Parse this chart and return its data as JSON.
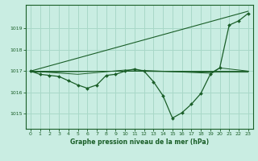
{
  "bg_color": "#c9ede2",
  "grid_color": "#a8d8c8",
  "line_color": "#1a5e28",
  "title": "Graphe pression niveau de la mer (hPa)",
  "xlim": [
    -0.5,
    23.5
  ],
  "ylim": [
    1014.3,
    1020.1
  ],
  "yticks": [
    1015,
    1016,
    1017,
    1018,
    1019
  ],
  "xticks": [
    0,
    1,
    2,
    3,
    4,
    5,
    6,
    7,
    8,
    9,
    10,
    11,
    12,
    13,
    14,
    15,
    16,
    17,
    18,
    19,
    20,
    21,
    22,
    23
  ],
  "series_main": {
    "x": [
      0,
      1,
      2,
      3,
      4,
      5,
      6,
      7,
      8,
      9,
      10,
      11,
      12,
      13,
      14,
      15,
      16,
      17,
      18,
      19,
      20,
      21,
      22,
      23
    ],
    "y": [
      1017.0,
      1016.85,
      1016.8,
      1016.75,
      1016.55,
      1016.35,
      1016.2,
      1016.35,
      1016.8,
      1016.85,
      1017.0,
      1017.1,
      1017.0,
      1016.5,
      1015.85,
      1014.8,
      1015.05,
      1015.45,
      1015.95,
      1016.85,
      1017.15,
      1019.15,
      1019.35,
      1019.7
    ]
  },
  "series_diagonal": {
    "x": [
      0,
      23
    ],
    "y": [
      1017.0,
      1019.8
    ]
  },
  "series_flat1": {
    "x": [
      0,
      23
    ],
    "y": [
      1017.0,
      1017.0
    ]
  },
  "series_flat2": {
    "x": [
      0,
      10,
      19,
      23
    ],
    "y": [
      1016.95,
      1017.0,
      1016.95,
      1016.95
    ]
  },
  "series_flat3": {
    "x": [
      0,
      5,
      10,
      11,
      19,
      20,
      23
    ],
    "y": [
      1017.0,
      1016.85,
      1017.05,
      1017.05,
      1016.9,
      1017.15,
      1017.0
    ]
  }
}
